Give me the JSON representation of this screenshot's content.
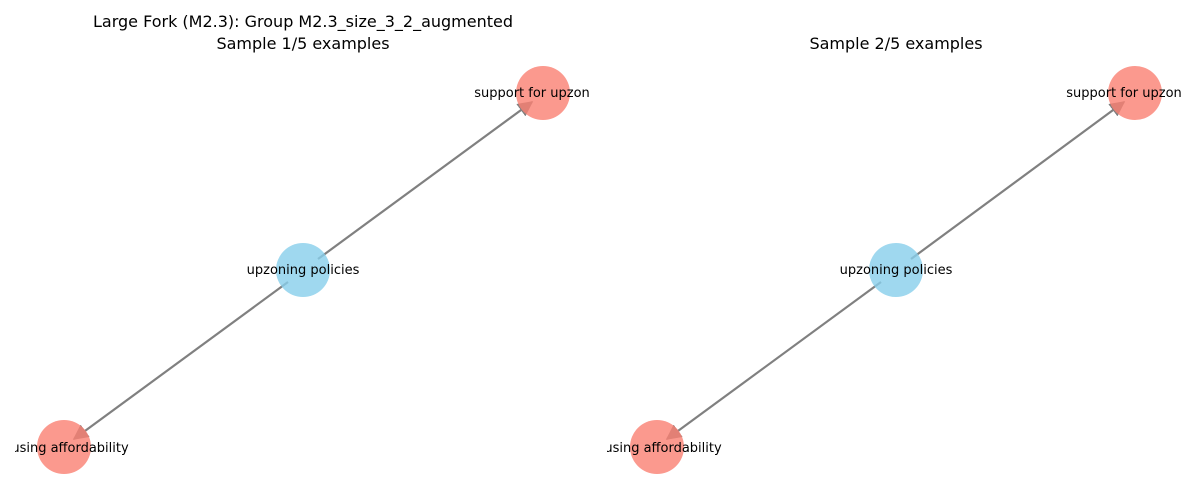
{
  "colors": {
    "center_node": "#87ceeb",
    "outer_node": "#fa8072",
    "edge": "#808080"
  },
  "panels": [
    {
      "title_line1": "Large Fork (M2.3): Group M2.3_size_3_2_augmented",
      "title_line2": "Sample 1/5 examples",
      "nodes": {
        "top": "support for upzon",
        "center": "upzoning policies",
        "bottom": "using affordability"
      },
      "edges": [
        {
          "from": "center",
          "to": "top"
        },
        {
          "from": "center",
          "to": "bottom"
        }
      ]
    },
    {
      "title_line1": "",
      "title_line2": "Sample 2/5 examples",
      "nodes": {
        "top": "support for upzon",
        "center": "upzoning policies",
        "bottom": "using affordability"
      },
      "edges": [
        {
          "from": "center",
          "to": "top"
        },
        {
          "from": "center",
          "to": "bottom"
        }
      ]
    }
  ]
}
